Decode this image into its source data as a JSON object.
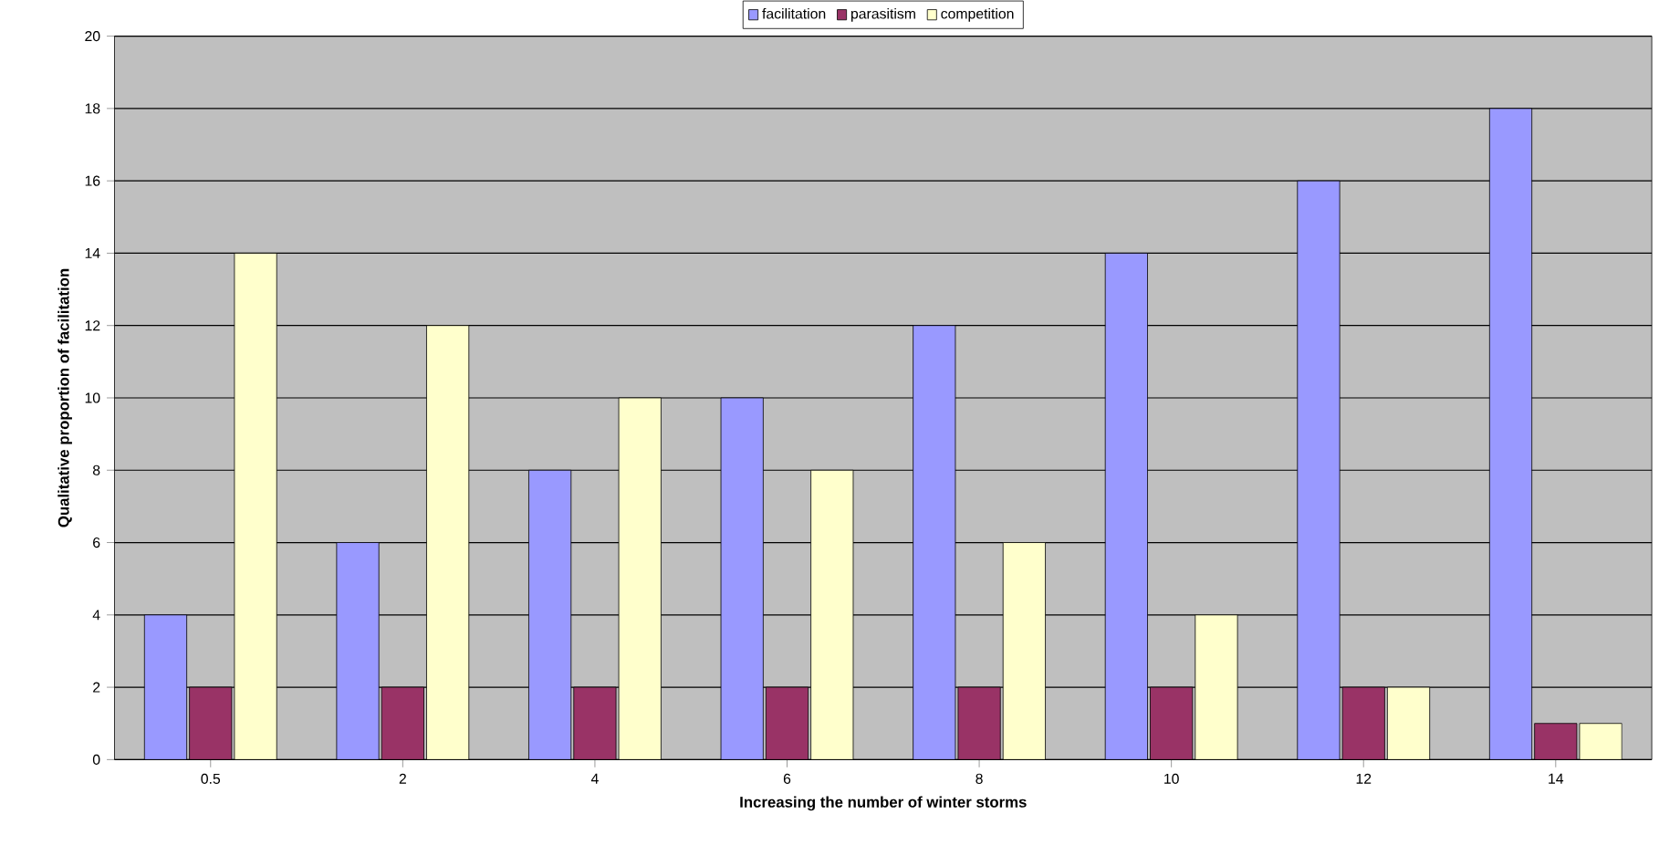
{
  "chart_data": {
    "type": "bar",
    "xlabel": "Increasing the number of winter storms",
    "ylabel": "Qualitative proportion of facilitation",
    "categories": [
      "0.5",
      "2",
      "4",
      "6",
      "8",
      "10",
      "12",
      "14"
    ],
    "series": [
      {
        "name": "facilitation",
        "color": "#9999ff",
        "values": [
          4,
          6,
          8,
          10,
          12,
          14,
          16,
          18
        ]
      },
      {
        "name": "parasitism",
        "color": "#993366",
        "values": [
          2,
          2,
          2,
          2,
          2,
          2,
          2,
          1
        ]
      },
      {
        "name": "competition",
        "color": "#ffffcc",
        "values": [
          14,
          12,
          10,
          8,
          6,
          4,
          2,
          1
        ]
      }
    ],
    "ylim": [
      0,
      20
    ],
    "yticks": [
      0,
      2,
      4,
      6,
      8,
      10,
      12,
      14,
      16,
      18,
      20
    ],
    "grid": "y",
    "legend": "top"
  }
}
